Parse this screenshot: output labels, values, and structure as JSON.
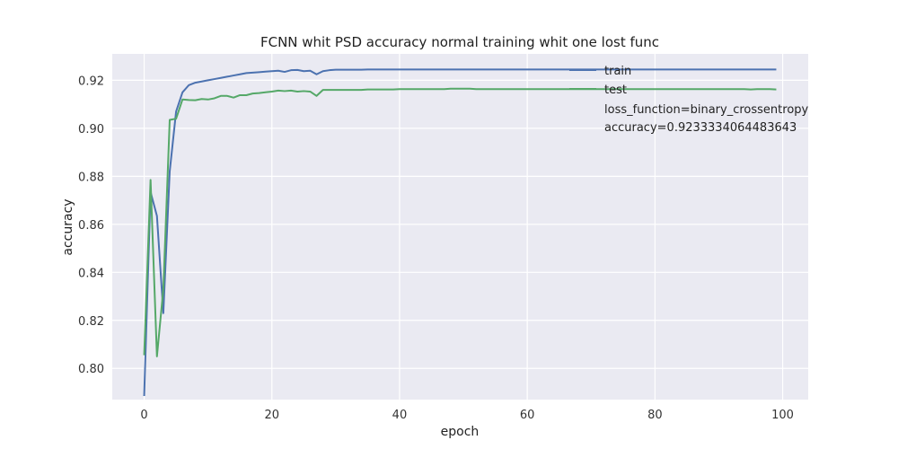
{
  "chart_data": {
    "type": "line",
    "title": "FCNN whit PSD accuracy normal training whit one lost func",
    "xlabel": "epoch",
    "ylabel": "accuracy",
    "xlim": [
      -5,
      104
    ],
    "ylim": [
      0.787,
      0.931
    ],
    "xticks": [
      0,
      20,
      40,
      60,
      80,
      100
    ],
    "yticks": [
      0.8,
      0.82,
      0.84,
      0.86,
      0.88,
      0.9,
      0.92
    ],
    "xtick_labels": [
      "0",
      "20",
      "40",
      "60",
      "80",
      "100"
    ],
    "ytick_labels": [
      "0.80",
      "0.82",
      "0.84",
      "0.86",
      "0.88",
      "0.90",
      "0.92"
    ],
    "grid": true,
    "legend_position": "top-right",
    "annotations": [
      "loss_function=binary_crossentropy",
      "accuracy=0.9233334064483643"
    ],
    "series": [
      {
        "name": "train",
        "color": "#4c72b0",
        "x": [
          0,
          1,
          2,
          3,
          4,
          5,
          6,
          7,
          8,
          9,
          10,
          11,
          12,
          13,
          14,
          15,
          16,
          17,
          18,
          19,
          20,
          21,
          22,
          23,
          24,
          25,
          26,
          27,
          28,
          29,
          30,
          31,
          32,
          33,
          34,
          35,
          36,
          37,
          38,
          39,
          40,
          41,
          42,
          43,
          44,
          45,
          46,
          47,
          48,
          49,
          50,
          51,
          52,
          53,
          54,
          55,
          56,
          57,
          58,
          59,
          60,
          61,
          62,
          63,
          64,
          65,
          66,
          67,
          68,
          69,
          70,
          71,
          72,
          73,
          74,
          75,
          76,
          77,
          78,
          79,
          80,
          81,
          82,
          83,
          84,
          85,
          86,
          87,
          88,
          89,
          90,
          91,
          92,
          93,
          94,
          95,
          96,
          97,
          98,
          99
        ],
        "y": [
          0.7885,
          0.8735,
          0.8635,
          0.823,
          0.882,
          0.907,
          0.915,
          0.918,
          0.919,
          0.9195,
          0.92,
          0.9205,
          0.921,
          0.9215,
          0.922,
          0.9225,
          0.923,
          0.9232,
          0.9234,
          0.9236,
          0.9238,
          0.924,
          0.9235,
          0.9242,
          0.9243,
          0.9238,
          0.924,
          0.9225,
          0.9238,
          0.9242,
          0.9244,
          0.9244,
          0.9244,
          0.9244,
          0.9244,
          0.9245,
          0.9245,
          0.9245,
          0.9245,
          0.9245,
          0.9245,
          0.9245,
          0.9245,
          0.9245,
          0.9245,
          0.9245,
          0.9245,
          0.9245,
          0.9245,
          0.9245,
          0.9245,
          0.9245,
          0.9245,
          0.9245,
          0.9245,
          0.9245,
          0.9245,
          0.9245,
          0.9245,
          0.9245,
          0.9245,
          0.9245,
          0.9245,
          0.9245,
          0.9245,
          0.9245,
          0.9245,
          0.9245,
          0.9245,
          0.9245,
          0.9245,
          0.9245,
          0.9245,
          0.9245,
          0.9245,
          0.9245,
          0.9245,
          0.9245,
          0.9245,
          0.9245,
          0.9245,
          0.9245,
          0.9245,
          0.9245,
          0.9245,
          0.9245,
          0.9245,
          0.9245,
          0.9245,
          0.9245,
          0.9245,
          0.9245,
          0.9245,
          0.9245,
          0.9245,
          0.9245,
          0.9245,
          0.9245,
          0.9245,
          0.9245
        ]
      },
      {
        "name": "test",
        "color": "#55a868",
        "x": [
          0,
          1,
          2,
          3,
          4,
          5,
          6,
          7,
          8,
          9,
          10,
          11,
          12,
          13,
          14,
          15,
          16,
          17,
          18,
          19,
          20,
          21,
          22,
          23,
          24,
          25,
          26,
          27,
          28,
          29,
          30,
          31,
          32,
          33,
          34,
          35,
          36,
          37,
          38,
          39,
          40,
          41,
          42,
          43,
          44,
          45,
          46,
          47,
          48,
          49,
          50,
          51,
          52,
          53,
          54,
          55,
          56,
          57,
          58,
          59,
          60,
          61,
          62,
          63,
          64,
          65,
          66,
          67,
          68,
          69,
          70,
          71,
          72,
          73,
          74,
          75,
          76,
          77,
          78,
          79,
          80,
          81,
          82,
          83,
          84,
          85,
          86,
          87,
          88,
          89,
          90,
          91,
          92,
          93,
          94,
          95,
          96,
          97,
          98,
          99
        ],
        "y": [
          0.8055,
          0.8785,
          0.805,
          0.833,
          0.9035,
          0.904,
          0.912,
          0.9118,
          0.9117,
          0.9122,
          0.912,
          0.9125,
          0.9135,
          0.9135,
          0.9128,
          0.9138,
          0.9138,
          0.9145,
          0.9147,
          0.915,
          0.9153,
          0.9157,
          0.9155,
          0.9157,
          0.9153,
          0.9155,
          0.9153,
          0.9135,
          0.916,
          0.916,
          0.916,
          0.916,
          0.916,
          0.916,
          0.916,
          0.9162,
          0.9162,
          0.9162,
          0.9162,
          0.9162,
          0.9163,
          0.9163,
          0.9163,
          0.9163,
          0.9163,
          0.9163,
          0.9163,
          0.9163,
          0.9165,
          0.9165,
          0.9165,
          0.9165,
          0.9163,
          0.9163,
          0.9163,
          0.9163,
          0.9163,
          0.9163,
          0.9163,
          0.9163,
          0.9163,
          0.9163,
          0.9163,
          0.9163,
          0.9163,
          0.9163,
          0.9163,
          0.9163,
          0.9163,
          0.9163,
          0.9163,
          0.9163,
          0.9163,
          0.9163,
          0.9163,
          0.9163,
          0.9163,
          0.9163,
          0.9163,
          0.9163,
          0.9163,
          0.9163,
          0.9163,
          0.9163,
          0.9163,
          0.9163,
          0.9163,
          0.9163,
          0.9163,
          0.9163,
          0.9163,
          0.9163,
          0.9163,
          0.9163,
          0.9163,
          0.9162,
          0.9163,
          0.9163,
          0.9163,
          0.9162
        ]
      }
    ]
  }
}
